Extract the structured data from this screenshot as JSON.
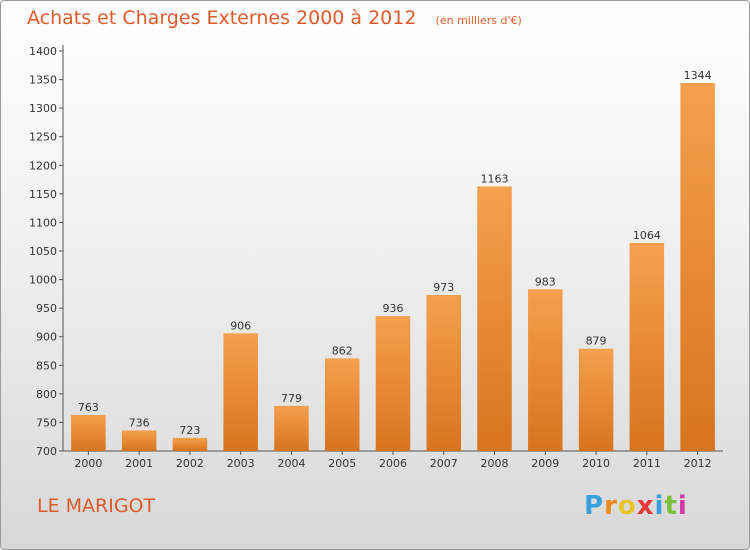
{
  "chart_data": {
    "type": "bar",
    "title": "Achats et Charges Externes 2000 à 2012",
    "subtitle": "(en milliers d'€)",
    "categories": [
      "2000",
      "2001",
      "2002",
      "2003",
      "2004",
      "2005",
      "2006",
      "2007",
      "2008",
      "2009",
      "2010",
      "2011",
      "2012"
    ],
    "values": [
      763,
      736,
      723,
      906,
      779,
      862,
      936,
      973,
      1163,
      983,
      879,
      1064,
      1344
    ],
    "ylim": [
      700,
      1400
    ],
    "yticks": [
      700,
      750,
      800,
      850,
      900,
      950,
      1000,
      1050,
      1100,
      1150,
      1200,
      1250,
      1300,
      1350,
      1400
    ],
    "xlabel": "",
    "ylabel": "",
    "grid": false,
    "bar_color_light": "#f5a04e",
    "bar_color_dark": "#d8741e"
  },
  "footer": {
    "commune": "LE MARIGOT",
    "logo_letters": [
      "P",
      "r",
      "o",
      "x",
      "i",
      "t",
      "i"
    ],
    "logo_colors": [
      "#3aa0dc",
      "#f08a1c",
      "#e8c62a",
      "#e23a3a",
      "#3aa0dc",
      "#7cbf3a",
      "#d13aa8"
    ]
  }
}
